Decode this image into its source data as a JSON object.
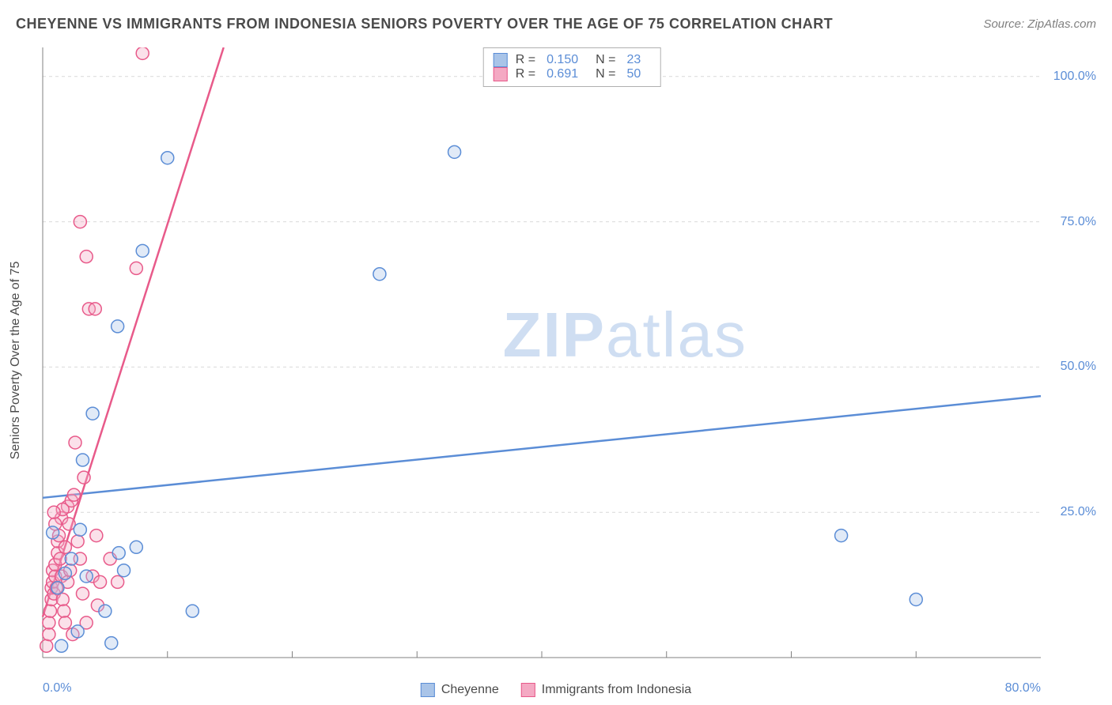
{
  "title": "CHEYENNE VS IMMIGRANTS FROM INDONESIA SENIORS POVERTY OVER THE AGE OF 75 CORRELATION CHART",
  "source": "Source: ZipAtlas.com",
  "watermark_bold": "ZIP",
  "watermark_light": "atlas",
  "chart": {
    "type": "scatter",
    "x_min": 0,
    "x_max": 80,
    "y_min": 0,
    "y_max": 105,
    "background_color": "#ffffff",
    "grid_color": "#d9d9d9",
    "axis_color": "#808080",
    "tick_color": "#808080",
    "y_label": "Seniors Poverty Over the Age of 75",
    "label_fontsize": 16,
    "tick_fontsize": 16,
    "tick_label_color": "#5b8dd6",
    "y_ticks": [
      25,
      50,
      75,
      100
    ],
    "y_tick_labels": [
      "25.0%",
      "50.0%",
      "75.0%",
      "100.0%"
    ],
    "x_ticks_minor": [
      10,
      20,
      30,
      40,
      50,
      60,
      70
    ],
    "x_tick_labels": [
      {
        "value": 0,
        "label": "0.0%"
      },
      {
        "value": 80,
        "label": "80.0%"
      }
    ],
    "marker_radius": 8,
    "marker_stroke_width": 1.5,
    "marker_fill_opacity": 0.35,
    "line_width": 2.5,
    "series": [
      {
        "name": "Cheyenne",
        "color": "#5b8dd6",
        "fill": "#a9c4e8",
        "R": "0.150",
        "N": "23",
        "reg_line": {
          "x1": 0,
          "y1": 27.5,
          "x2": 80,
          "y2": 45
        },
        "points": [
          [
            0.8,
            21.5
          ],
          [
            1.2,
            12
          ],
          [
            1.5,
            2
          ],
          [
            1.8,
            14.5
          ],
          [
            2.3,
            17
          ],
          [
            3,
            22
          ],
          [
            3.2,
            34
          ],
          [
            3.5,
            14
          ],
          [
            4,
            42
          ],
          [
            5,
            8
          ],
          [
            5.5,
            2.5
          ],
          [
            6,
            57
          ],
          [
            6.1,
            18
          ],
          [
            6.5,
            15
          ],
          [
            7.5,
            19
          ],
          [
            8,
            70
          ],
          [
            10,
            86
          ],
          [
            12,
            8
          ],
          [
            27,
            66
          ],
          [
            33,
            87
          ],
          [
            64,
            21
          ],
          [
            70,
            10
          ],
          [
            2.8,
            4.5
          ]
        ]
      },
      {
        "name": "Immigrants from Indonesia",
        "color": "#e85a8a",
        "fill": "#f4a9c3",
        "R": "0.691",
        "N": "50",
        "reg_line": {
          "x1": 0,
          "y1": 7,
          "x2": 14.5,
          "y2": 105
        },
        "points": [
          [
            0.3,
            2
          ],
          [
            0.5,
            4
          ],
          [
            0.5,
            6
          ],
          [
            0.6,
            8
          ],
          [
            0.7,
            10
          ],
          [
            0.7,
            12
          ],
          [
            0.8,
            13
          ],
          [
            0.8,
            15
          ],
          [
            0.9,
            11
          ],
          [
            1.0,
            14
          ],
          [
            1.0,
            16
          ],
          [
            1.1,
            12
          ],
          [
            1.2,
            18
          ],
          [
            1.2,
            20
          ],
          [
            1.3,
            21
          ],
          [
            1.4,
            17
          ],
          [
            1.5,
            14
          ],
          [
            1.5,
            24
          ],
          [
            1.6,
            10
          ],
          [
            1.7,
            8
          ],
          [
            1.8,
            19
          ],
          [
            1.8,
            6
          ],
          [
            2.0,
            26
          ],
          [
            2.0,
            13
          ],
          [
            2.2,
            15
          ],
          [
            2.3,
            27
          ],
          [
            2.4,
            4
          ],
          [
            2.5,
            28
          ],
          [
            2.6,
            37
          ],
          [
            2.8,
            20
          ],
          [
            3.0,
            17
          ],
          [
            3.0,
            75
          ],
          [
            3.2,
            11
          ],
          [
            3.3,
            31
          ],
          [
            3.5,
            69
          ],
          [
            3.5,
            6
          ],
          [
            3.7,
            60
          ],
          [
            4.0,
            14
          ],
          [
            4.2,
            60
          ],
          [
            4.3,
            21
          ],
          [
            4.4,
            9
          ],
          [
            4.6,
            13
          ],
          [
            5.4,
            17
          ],
          [
            6,
            13
          ],
          [
            7.5,
            67
          ],
          [
            8,
            104
          ],
          [
            2.1,
            23
          ],
          [
            1.6,
            25.5
          ],
          [
            1.0,
            23
          ],
          [
            0.9,
            25
          ]
        ]
      }
    ]
  },
  "bottom_legend": [
    {
      "label": "Cheyenne",
      "color": "#5b8dd6",
      "fill": "#a9c4e8"
    },
    {
      "label": "Immigrants from Indonesia",
      "color": "#e85a8a",
      "fill": "#f4a9c3"
    }
  ]
}
